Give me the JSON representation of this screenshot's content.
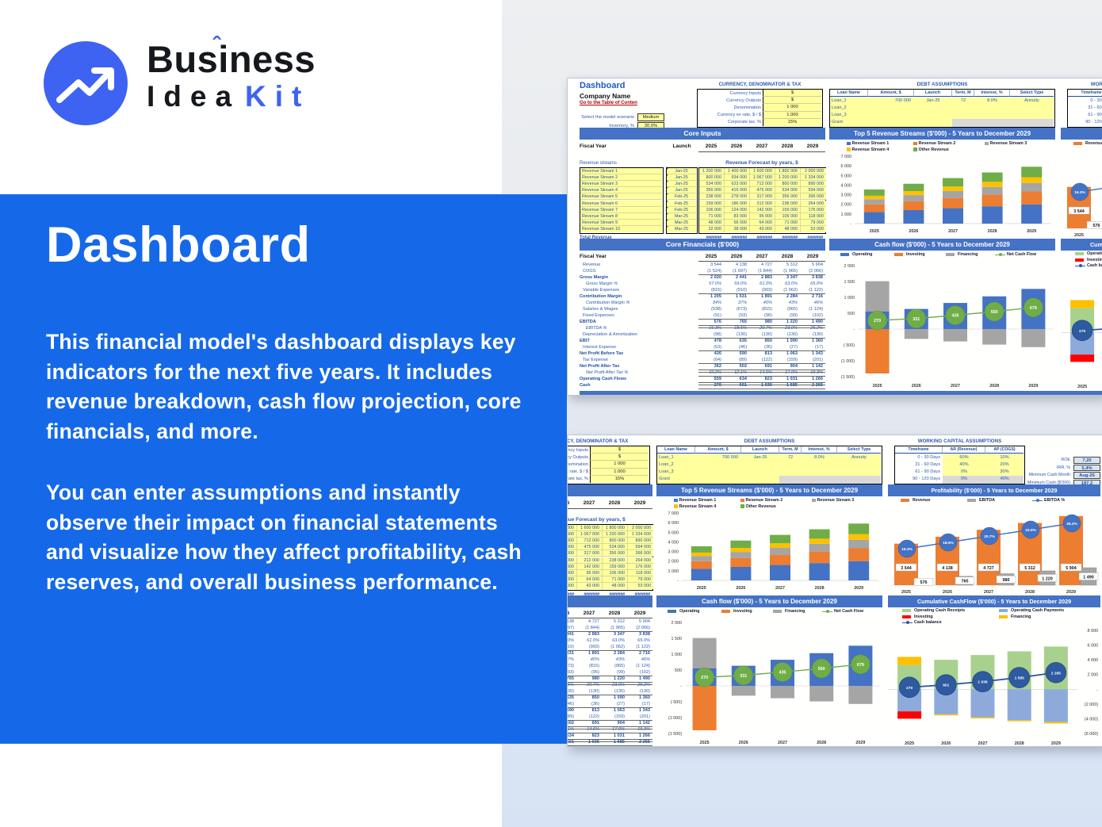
{
  "brand": {
    "word_pre": "Bus",
    "word_i": "i",
    "caret": "ˆ",
    "word_post": "ness",
    "line2_black": "Idea",
    "line2_blue": "Kit"
  },
  "hero": {
    "title": "Dashboard",
    "p1": "This financial model's dashboard displays key indicators for the next five years. It includes revenue breakdown, cash flow projection, core financials, and more.",
    "p2": "You can enter assumptions and instantly observe their impact on financial statements and visualize how they affect profitability, cash reserves, and overall business performance."
  },
  "colors": {
    "hero_blue": "#1569e9",
    "logo_blue": "#3e63f2",
    "excel_header": "#4472c4",
    "link_red": "#b00000",
    "cell_yellow": "#ffff9e",
    "metric_bg": "#dbe5f1"
  },
  "sheet": {
    "title": "Dashboard",
    "company": "Company Name",
    "toc_link": "Go to the Table of Conten",
    "scenario_label": "Select the model scenario",
    "scenario_value": "Medium",
    "inventory_label": "Inventory, %",
    "inventory_value": "30.0%",
    "currency": {
      "title": "CURRENCY, DENOMINATOR & TAX",
      "rows": [
        [
          "Currency Inputs",
          "$"
        ],
        [
          "Currency Outputs",
          "$"
        ],
        [
          "Denomination",
          "1 000"
        ],
        [
          "Currency ex rate, $ / $",
          "1.000"
        ],
        [
          "Corporate tax, %",
          "15%"
        ]
      ]
    },
    "debt": {
      "title": "DEBT ASSUMPTIONS",
      "headers": [
        "Loan Name",
        "Amount, $",
        "Launch",
        "Term, M",
        "Interest, %",
        "Select Type"
      ],
      "rows": [
        [
          "Loan_1",
          "700 000",
          "Jan-25",
          "72",
          "8.0%",
          "Annuity"
        ],
        [
          "Loan_2",
          "",
          "",
          "",
          "",
          ""
        ],
        [
          "Loan_3",
          "",
          "",
          "",
          "",
          ""
        ],
        [
          "Grant",
          "",
          "",
          "",
          "",
          ""
        ]
      ]
    },
    "working_capital": {
      "title": "WORKING CAPITAL ASSUMPTIONS",
      "headers": [
        "Timeframe",
        "AR (Revenue)",
        "AP (COGS)"
      ],
      "rows": [
        [
          "0 - 30 Days",
          "60%",
          "10%"
        ],
        [
          "31 - 60 Days",
          "40%",
          "20%"
        ],
        [
          "61 - 90 Days",
          "0%",
          "30%"
        ],
        [
          "90 - 120 Days",
          "0%",
          "40%"
        ]
      ]
    },
    "metrics": [
      [
        "ROE",
        "7,20"
      ],
      [
        "IRR, %",
        "5,4%"
      ],
      [
        "Minimum Cash Month",
        "Aug-25"
      ],
      [
        "Minimum Cash ($'000)",
        "187,2"
      ]
    ],
    "core_inputs": {
      "title": "Core Inputs",
      "fiscal_label": "Fiscal Year",
      "launch_label": "Launch",
      "years": [
        "2025",
        "2026",
        "2027",
        "2028",
        "2029"
      ],
      "streams_label": "Revenue streams",
      "forecast_label": "Revenue Forecast by years, $",
      "total_label": "Total Revenue",
      "total_display": "#######",
      "rows": [
        {
          "name": "Revenue Stream 1",
          "launch": "Jan-25",
          "values": [
            "1 200 000",
            "1 400 000",
            "1 600 000",
            "1 800 000",
            "2 000 000"
          ]
        },
        {
          "name": "Revenue Stream 2",
          "launch": "Jan-25",
          "values": [
            "800 000",
            "934 000",
            "1 067 000",
            "1 200 000",
            "1 334 000"
          ]
        },
        {
          "name": "Revenue Stream 3",
          "launch": "Jan-25",
          "values": [
            "534 000",
            "623 000",
            "712 000",
            "800 000",
            "890 000"
          ]
        },
        {
          "name": "Revenue Stream 4",
          "launch": "Jan-25",
          "values": [
            "356 000",
            "416 000",
            "475 000",
            "534 000",
            "594 000"
          ]
        },
        {
          "name": "Revenue Stream 5",
          "launch": "Feb-25",
          "values": [
            "238 000",
            "278 000",
            "317 000",
            "356 000",
            "396 000"
          ]
        },
        {
          "name": "Revenue Stream 6",
          "launch": "Feb-25",
          "values": [
            "159 000",
            "186 000",
            "212 000",
            "238 000",
            "264 000"
          ]
        },
        {
          "name": "Revenue Stream 7",
          "launch": "Feb-25",
          "values": [
            "106 000",
            "124 000",
            "142 000",
            "159 000",
            "176 000"
          ]
        },
        {
          "name": "Revenue Stream 8",
          "launch": "Mar-25",
          "values": [
            "71 000",
            "83 000",
            "95 000",
            "106 000",
            "118 000"
          ]
        },
        {
          "name": "Revenue Stream 9",
          "launch": "Mar-25",
          "values": [
            "48 000",
            "56 000",
            "64 000",
            "71 000",
            "79 000"
          ]
        },
        {
          "name": "Revenue Stream 10",
          "launch": "Mar-25",
          "values": [
            "32 000",
            "38 000",
            "43 000",
            "48 000",
            "53 000"
          ]
        }
      ]
    },
    "core_financials": {
      "title": "Core Financials ($'000)",
      "fiscal_label": "Fiscal Year",
      "years": [
        "2025",
        "2026",
        "2027",
        "2028",
        "2029"
      ],
      "rows": [
        {
          "label": "Revenue",
          "style": "plain",
          "values": [
            "3 544",
            "4 138",
            "4 727",
            "5 312",
            "5 904"
          ]
        },
        {
          "label": "COGS",
          "style": "plain",
          "values": [
            "(1 524)",
            "(1 697)",
            "(1 844)",
            "(1 965)",
            "(2 066)"
          ]
        },
        {
          "label": "Gross Margin",
          "style": "bold",
          "line": "top",
          "values": [
            "2 020",
            "2 441",
            "2 883",
            "3 347",
            "3 838"
          ]
        },
        {
          "label": "Gross Margin %",
          "style": "pct",
          "values": [
            "57.0%",
            "59.0%",
            "61.0%",
            "63.0%",
            "65.0%"
          ]
        },
        {
          "label": "Variable Expenses",
          "style": "plain",
          "values": [
            "(815)",
            "(910)",
            "(993)",
            "(1 062)",
            "(1 122)"
          ]
        },
        {
          "label": "Contribution Margin",
          "style": "bold",
          "line": "top",
          "values": [
            "1 205",
            "1 531",
            "1 891",
            "2 284",
            "2 716"
          ]
        },
        {
          "label": "Contribution Margin %",
          "style": "pct",
          "values": [
            "34%",
            "37%",
            "40%",
            "43%",
            "46%"
          ]
        },
        {
          "label": "Salaries & Wages",
          "style": "plain",
          "values": [
            "(538)",
            "(673)",
            "(815)",
            "(965)",
            "(1 124)"
          ]
        },
        {
          "label": "Fixed Expenses",
          "style": "plain",
          "values": [
            "(91)",
            "(93)",
            "(96)",
            "(99)",
            "(102)"
          ]
        },
        {
          "label": "EBITDA",
          "style": "bold",
          "line": "dbl",
          "values": [
            "576",
            "765",
            "980",
            "1 220",
            "1 490"
          ]
        },
        {
          "label": "EBITDA %",
          "style": "pct",
          "values": [
            "16.3%",
            "18.5%",
            "20.7%",
            "23.0%",
            "25.2%"
          ]
        },
        {
          "label": "Depreciation & Amortization",
          "style": "plain",
          "values": [
            "(98)",
            "(130)",
            "(130)",
            "(130)",
            "(130)"
          ]
        },
        {
          "label": "EBIT",
          "style": "bold",
          "line": "top",
          "values": [
            "478",
            "635",
            "850",
            "1 090",
            "1 360"
          ]
        },
        {
          "label": "Interest Expense",
          "style": "plain",
          "values": [
            "(53)",
            "(46)",
            "(36)",
            "(27)",
            "(17)"
          ]
        },
        {
          "label": "Net Profit Before Tax",
          "style": "bold",
          "line": "top",
          "values": [
            "426",
            "590",
            "813",
            "1 063",
            "1 343"
          ]
        },
        {
          "label": "Tax Expense",
          "style": "plain",
          "values": [
            "(64)",
            "(89)",
            "(122)",
            "(159)",
            "(201)"
          ]
        },
        {
          "label": "Net Profit After Tax",
          "style": "bold",
          "line": "dbl",
          "values": [
            "362",
            "502",
            "691",
            "904",
            "1 142"
          ]
        },
        {
          "label": "Net Profit After Tax %",
          "style": "pct",
          "values": [
            "10.2%",
            "12.1%",
            "14.6%",
            "17.0%",
            "19.3%"
          ]
        },
        {
          "label": "Operating Cash Flows",
          "style": "bold",
          "line": "dbl",
          "values": [
            "559",
            "634",
            "823",
            "1 031",
            "1 266"
          ]
        },
        {
          "label": "Cash",
          "style": "bold",
          "line": "dbl",
          "values": [
            "270",
            "601",
            "1 036",
            "1 585",
            "2 265"
          ]
        }
      ]
    }
  },
  "chart_data": [
    {
      "id": "top5",
      "type": "bar",
      "title": "Top 5 Revenue Streams ($'000) - 5 Years to December 2029",
      "categories": [
        "2025",
        "2026",
        "2027",
        "2028",
        "2029"
      ],
      "series": [
        {
          "name": "Revenue Stream 1",
          "color": "#4472c4",
          "values": [
            1200,
            1400,
            1600,
            1800,
            2000
          ]
        },
        {
          "name": "Revenue Stream 2",
          "color": "#ed7d31",
          "values": [
            800,
            934,
            1067,
            1200,
            1334
          ]
        },
        {
          "name": "Revenue Stream 3",
          "color": "#a5a5a5",
          "values": [
            534,
            623,
            712,
            800,
            890
          ]
        },
        {
          "name": "Revenue Stream 4",
          "color": "#ffc000",
          "values": [
            356,
            416,
            475,
            534,
            594
          ]
        },
        {
          "name": "Other Revenue",
          "color": "#70ad47",
          "values": [
            654,
            765,
            873,
            978,
            1086
          ]
        }
      ],
      "ylim": [
        0,
        7000
      ],
      "yticks": [
        "7 000",
        "6 000",
        "5 000",
        "4 000",
        "3 000",
        "2 000",
        "1 000",
        "-"
      ],
      "legend_position": "top",
      "grid": false
    },
    {
      "id": "profitability",
      "type": "bar",
      "title": "Profitability ($'000) - 5 Years to December 2029",
      "categories": [
        "2025",
        "2026",
        "2027",
        "2028",
        "2029"
      ],
      "series": [
        {
          "name": "Revenue",
          "color": "#ed7d31",
          "values": [
            3544,
            4138,
            4727,
            5312,
            5904
          ],
          "labels": [
            "3 544",
            "4 138",
            "4 727",
            "5 312",
            "5 904"
          ]
        },
        {
          "name": "EBITDA",
          "color": "#a5a5a5",
          "values": [
            576,
            765,
            980,
            1220,
            1490
          ],
          "labels": [
            "576",
            "765",
            "980",
            "1 220",
            "1 490"
          ]
        },
        {
          "name": "EBITDA %",
          "color": "#4472c4",
          "type": "line",
          "values": [
            16.3,
            18.5,
            20.7,
            23.0,
            25.2
          ],
          "labels": [
            "16.3%",
            "18.5%",
            "20.7%",
            "23.0%",
            "25.2%"
          ]
        }
      ],
      "ylim": [
        0,
        6500
      ],
      "legend_position": "top",
      "grid": false
    },
    {
      "id": "cashflow",
      "type": "bar",
      "title": "Cash flow ($'000) - 5 Years to December 2029",
      "categories": [
        "2025",
        "2026",
        "2027",
        "2028",
        "2029"
      ],
      "series": [
        {
          "name": "Operating",
          "color": "#4472c4",
          "values": [
            559,
            634,
            823,
            1031,
            1266
          ]
        },
        {
          "name": "Investing",
          "color": "#ed7d31",
          "values": [
            -1400,
            0,
            0,
            0,
            0
          ]
        },
        {
          "name": "Financing",
          "color": "#a5a5a5",
          "values": [
            950,
            -310,
            -390,
            -490,
            -570
          ]
        },
        {
          "name": "Net Cash Flow",
          "color": "#70ad47",
          "type": "line",
          "values": [
            270,
            331,
            435,
            550,
            679
          ],
          "labels": [
            "270",
            "331",
            "435",
            "550",
            "679"
          ]
        }
      ],
      "ylim": [
        -1500,
        2000
      ],
      "yticks": [
        "2 000",
        "1 500",
        "1 000",
        "500",
        "-",
        "( 500)",
        "(1 000)",
        "(1 500)"
      ],
      "legend_position": "top",
      "grid": false
    },
    {
      "id": "cumulative",
      "type": "bar",
      "title": "Cumulative CashFlow ($'000) - 5 Years to December 2029",
      "categories": [
        "2025",
        "2026",
        "2027",
        "2028",
        "2029"
      ],
      "series": [
        {
          "name": "Operating Cash Receipts",
          "color": "#a9d18e",
          "values": [
            3300,
            4000,
            4650,
            5150,
            5800
          ]
        },
        {
          "name": "Operating Cash Payments",
          "color": "#8eaadb",
          "values": [
            -3000,
            -3400,
            -3800,
            -4200,
            -4450
          ]
        },
        {
          "name": "Investing",
          "color": "#ff0000",
          "values": [
            -1000,
            0,
            0,
            0,
            0
          ]
        },
        {
          "name": "Financing",
          "color": "#ffc000",
          "values": [
            1100,
            -150,
            -150,
            -150,
            -200
          ]
        },
        {
          "name": "Cash balance",
          "color": "#2e5aa0",
          "type": "line",
          "values": [
            270,
            601,
            1036,
            1585,
            2265
          ],
          "labels": [
            "270",
            "601",
            "1 036",
            "1 585",
            "2 265"
          ]
        }
      ],
      "ylim": [
        -6000,
        8000
      ],
      "yticks": [
        "8 000",
        "6 000",
        "4 000",
        "2 000",
        "-",
        "(2 000)",
        "(4 000)",
        "(6 000)"
      ],
      "legend_position": "top",
      "grid": false
    }
  ]
}
